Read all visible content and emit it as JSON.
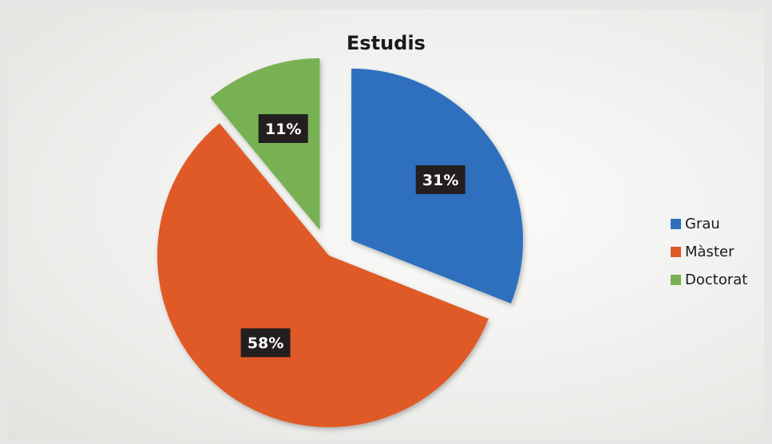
{
  "chart_data": {
    "type": "pie",
    "title": "Estudis",
    "slices": [
      {
        "label": "Grau",
        "value": 31,
        "display": "31%",
        "color": "#2e6fbd",
        "exploded": true
      },
      {
        "label": "Màster",
        "value": 58,
        "display": "58%",
        "color": "#df5a26",
        "exploded": false
      },
      {
        "label": "Doctorat",
        "value": 11,
        "display": "11%",
        "color": "#78b152",
        "exploded": true
      }
    ],
    "legend_position": "right",
    "data_label_style": "dark boxes with white bold text"
  }
}
